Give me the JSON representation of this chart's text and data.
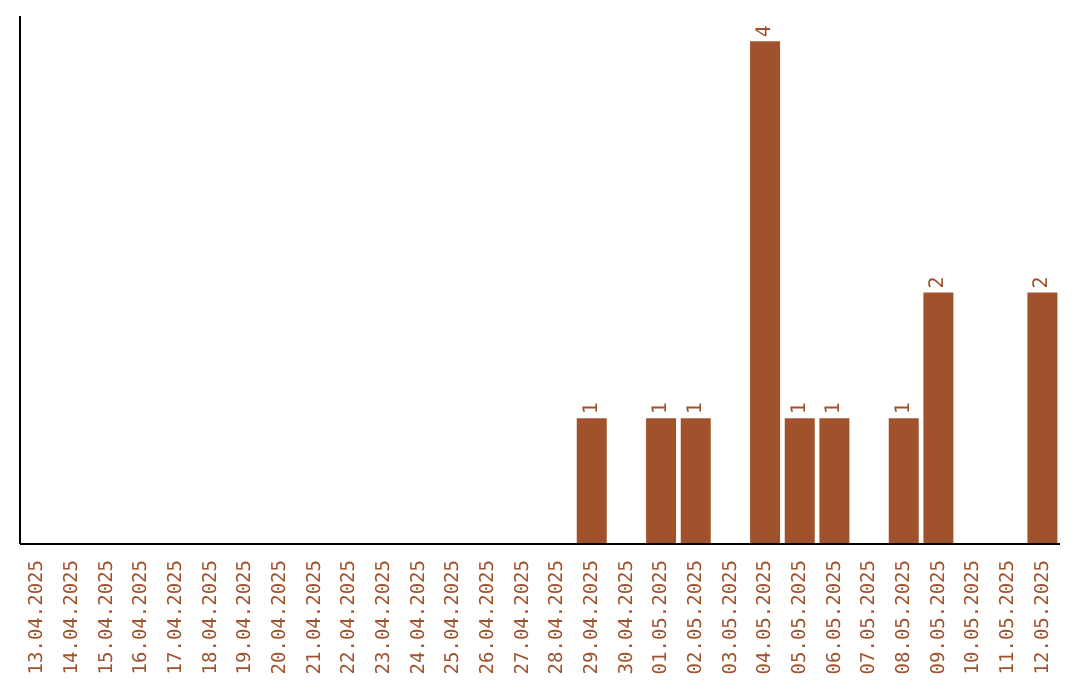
{
  "chart_data": {
    "type": "bar",
    "categories": [
      "13.04.2025",
      "14.04.2025",
      "15.04.2025",
      "16.04.2025",
      "17.04.2025",
      "18.04.2025",
      "19.04.2025",
      "20.04.2025",
      "21.04.2025",
      "22.04.2025",
      "23.04.2025",
      "24.04.2025",
      "25.04.2025",
      "26.04.2025",
      "27.04.2025",
      "28.04.2025",
      "29.04.2025",
      "30.04.2025",
      "01.05.2025",
      "02.05.2025",
      "03.05.2025",
      "04.05.2025",
      "05.05.2025",
      "06.05.2025",
      "07.05.2025",
      "08.05.2025",
      "09.05.2025",
      "10.05.2025",
      "11.05.2025",
      "12.05.2025"
    ],
    "values": [
      null,
      null,
      null,
      null,
      null,
      null,
      null,
      null,
      null,
      null,
      null,
      null,
      null,
      null,
      null,
      null,
      1,
      null,
      1,
      1,
      null,
      4,
      1,
      1,
      null,
      1,
      2,
      null,
      null,
      2
    ],
    "data_labels": true,
    "color": "#a0522d",
    "tick_labels": "x",
    "grid": false,
    "legend": false
  }
}
